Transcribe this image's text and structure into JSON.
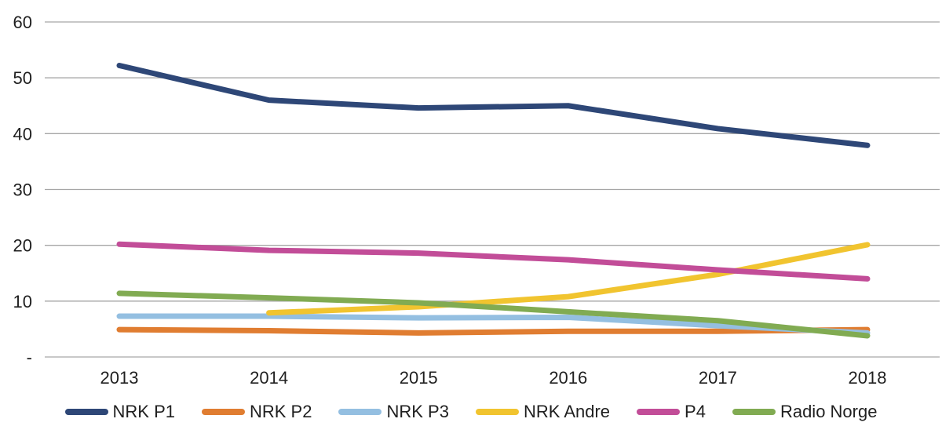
{
  "chart_data": {
    "type": "line",
    "title": "",
    "xlabel": "",
    "ylabel": "",
    "categories": [
      "2013",
      "2014",
      "2015",
      "2016",
      "2017",
      "2018"
    ],
    "series": [
      {
        "name": "NRK P1",
        "color": "#2E4777",
        "values": [
          52.2,
          46.0,
          44.6,
          45.0,
          40.9,
          37.9
        ]
      },
      {
        "name": "NRK P2",
        "color": "#E07D31",
        "values": [
          4.9,
          4.7,
          4.3,
          4.6,
          4.6,
          4.9
        ]
      },
      {
        "name": "NRK P3",
        "color": "#94BFE1",
        "values": [
          7.3,
          7.3,
          7.0,
          7.1,
          5.6,
          4.3
        ]
      },
      {
        "name": "NRK Andre",
        "color": "#F1C42F",
        "values": [
          null,
          7.9,
          9.0,
          10.8,
          14.8,
          20.1
        ]
      },
      {
        "name": "P4",
        "color": "#C24D98",
        "values": [
          20.2,
          19.1,
          18.6,
          17.4,
          15.6,
          14.0
        ]
      },
      {
        "name": "Radio Norge",
        "color": "#81AB52",
        "values": [
          11.4,
          10.6,
          9.7,
          8.1,
          6.5,
          3.8
        ]
      }
    ],
    "ylim": [
      0,
      60
    ],
    "y_ticks": [
      0,
      10,
      20,
      30,
      40,
      50,
      60
    ],
    "y_tick_labels": [
      "-",
      "10",
      "20",
      "30",
      "40",
      "50",
      "60"
    ],
    "grid": true,
    "gridlines_horizontal_only": true,
    "legend_position": "bottom",
    "line_width": 7
  },
  "styles": {
    "grid_color": "#A6A6A6",
    "text_color": "#1f1f1f",
    "background": "#FFFFFF"
  }
}
